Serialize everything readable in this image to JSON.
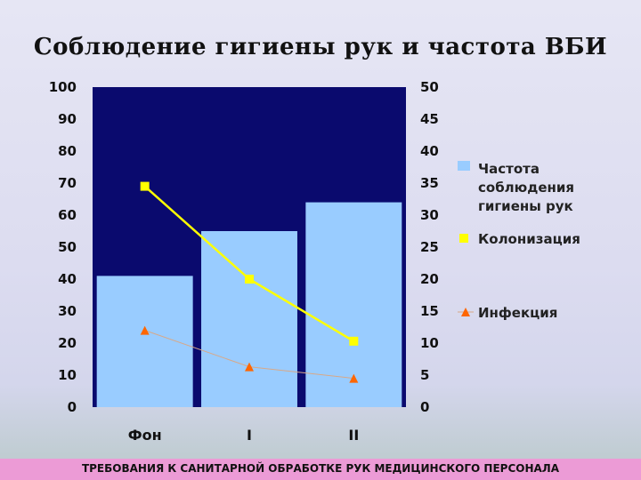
{
  "slide": {
    "footer": "ТРЕБОВАНИЯ К САНИТАРНОЙ ОБРАБОТКЕ РУК МЕДИЦИНСКОГО ПЕРСОНАЛА"
  },
  "chart_data": {
    "type": "bar",
    "title": "Соблюдение гигиены рук и частота ВБИ",
    "categories": [
      "Фон",
      "I",
      "II"
    ],
    "ylim": [
      0,
      100
    ],
    "y2lim": [
      0,
      50
    ],
    "y_ticks": [
      "0",
      "10",
      "20",
      "30",
      "40",
      "50",
      "60",
      "70",
      "80",
      "90",
      "100"
    ],
    "y2_ticks": [
      "0",
      "5",
      "10",
      "15",
      "20",
      "25",
      "30",
      "35",
      "40",
      "45",
      "50"
    ],
    "grid": false,
    "legend_position": "right",
    "colors": {
      "plot_bg": "#0a0a6e",
      "bar": "#99ccff",
      "colonization": "#ffff00",
      "infection": "#ff6600"
    },
    "series": [
      {
        "name": "Частота соблюдения гигиены рук",
        "type": "bar",
        "axis": "left",
        "values": [
          41,
          55,
          64
        ]
      },
      {
        "name": "Колонизация",
        "type": "line",
        "axis": "right",
        "marker": "square",
        "values": [
          34.5,
          20,
          10.3
        ]
      },
      {
        "name": "Инфекция",
        "type": "line",
        "axis": "right",
        "marker": "triangle",
        "values": [
          12,
          6.3,
          4.5
        ]
      }
    ]
  }
}
